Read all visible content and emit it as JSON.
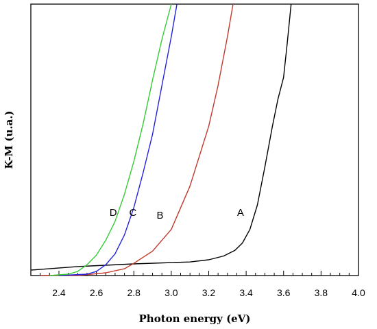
{
  "chart_data": {
    "type": "line",
    "title": "",
    "xlabel": "Photon energy (eV)",
    "ylabel": "K-M (u.a.)",
    "xlim": [
      2.25,
      4.0
    ],
    "ylim": [
      0,
      1
    ],
    "x_ticks": [
      2.4,
      2.6,
      2.8,
      3.0,
      3.2,
      3.4,
      3.6,
      3.8,
      4.0
    ],
    "x_tick_labels": [
      "2.4",
      "2.6",
      "2.8",
      "3.0",
      "3.2",
      "3.4",
      "3.6",
      "3.8",
      "4.0"
    ],
    "y_tick_labels_shown": false,
    "grid": false,
    "legend": "none",
    "series": [
      {
        "name": "A",
        "color": "#000000",
        "x": [
          2.25,
          2.5,
          2.8,
          3.1,
          3.2,
          3.28,
          3.34,
          3.38,
          3.42,
          3.46,
          3.5,
          3.54,
          3.57,
          3.6,
          3.62,
          3.64
        ],
        "y": [
          0.02,
          0.033,
          0.043,
          0.05,
          0.058,
          0.072,
          0.093,
          0.12,
          0.17,
          0.26,
          0.4,
          0.55,
          0.65,
          0.73,
          0.86,
          1.0
        ]
      },
      {
        "name": "B",
        "color": "#c0392b",
        "x": [
          2.3,
          2.5,
          2.65,
          2.75,
          2.8,
          2.9,
          3.0,
          3.1,
          3.2,
          3.25,
          3.3,
          3.33
        ],
        "y": [
          0.0,
          0.0,
          0.01,
          0.025,
          0.045,
          0.09,
          0.17,
          0.33,
          0.55,
          0.7,
          0.88,
          1.0
        ]
      },
      {
        "name": "C",
        "color": "#2222dd",
        "x": [
          2.4,
          2.55,
          2.6,
          2.65,
          2.7,
          2.75,
          2.8,
          2.85,
          2.9,
          2.95,
          3.0,
          3.03
        ],
        "y": [
          0.0,
          0.005,
          0.015,
          0.04,
          0.08,
          0.15,
          0.25,
          0.38,
          0.52,
          0.7,
          0.88,
          1.0
        ]
      },
      {
        "name": "D",
        "color": "#33cc33",
        "x": [
          2.35,
          2.45,
          2.5,
          2.55,
          2.6,
          2.65,
          2.7,
          2.75,
          2.8,
          2.85,
          2.9,
          2.95,
          3.0
        ],
        "y": [
          0.0,
          0.005,
          0.015,
          0.04,
          0.075,
          0.13,
          0.2,
          0.3,
          0.42,
          0.56,
          0.72,
          0.87,
          1.0
        ]
      }
    ],
    "annotations": [
      {
        "text": "A",
        "x": 3.37,
        "y": 0.22
      },
      {
        "text": "B",
        "x": 2.94,
        "y": 0.21
      },
      {
        "text": "C",
        "x": 2.795,
        "y": 0.22
      },
      {
        "text": "D",
        "x": 2.69,
        "y": 0.22
      }
    ]
  }
}
